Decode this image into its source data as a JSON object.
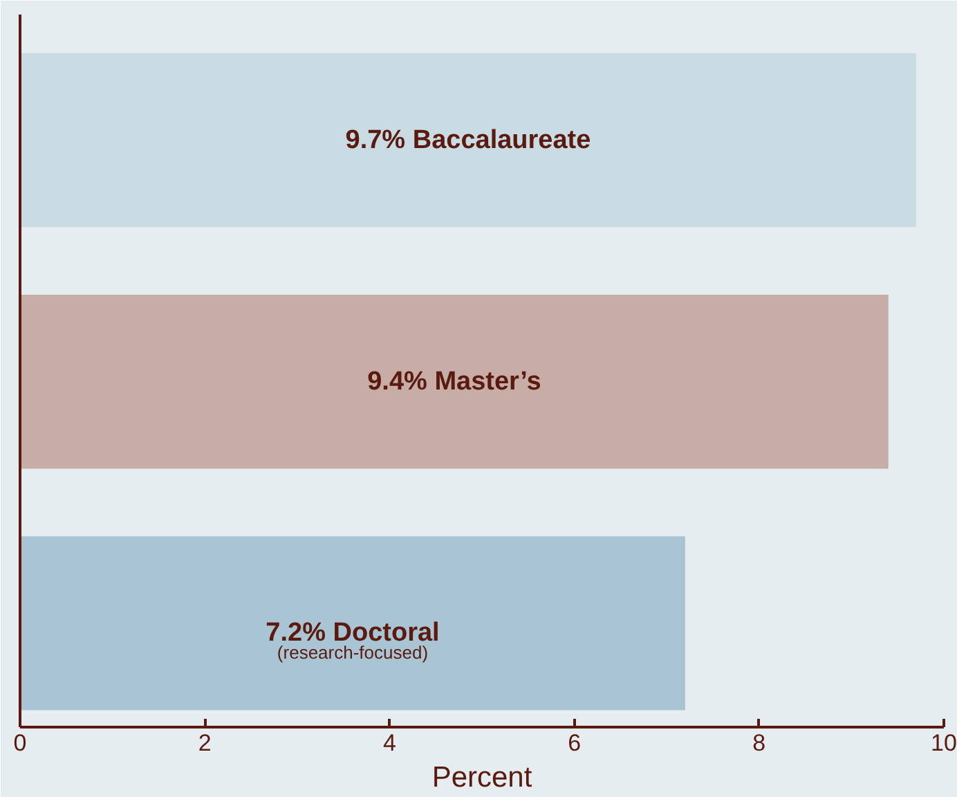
{
  "chart_data": {
    "type": "bar",
    "orientation": "horizontal",
    "xlabel": "Percent",
    "categories": [
      "Baccalaureate",
      "Master’s",
      "Doctoral\n(research-focused)"
    ],
    "values": [
      9.7,
      9.4,
      7.2
    ],
    "value_labels": [
      "9.7%",
      "9.4%",
      "7.2%"
    ],
    "colors": [
      "#c9dbe3",
      "#c8ada6",
      "#a9c4d2"
    ],
    "xlim": [
      0,
      10
    ],
    "xticks": [
      0,
      2,
      4,
      6,
      8,
      10
    ],
    "grid": false,
    "tick_labels": "x"
  }
}
